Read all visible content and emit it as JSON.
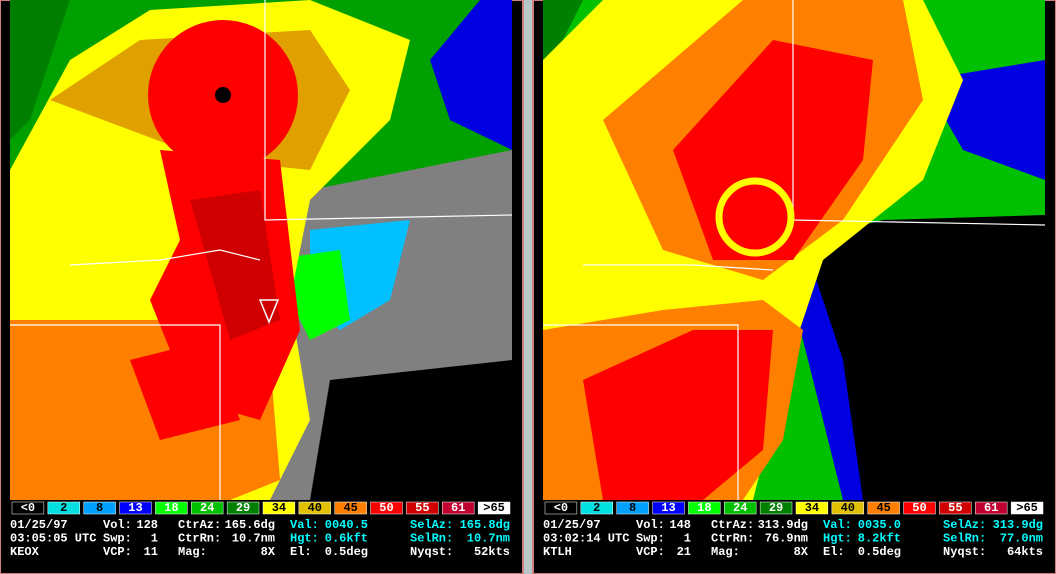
{
  "panels": [
    {
      "legend": [
        "<0",
        "2",
        "8",
        "13",
        "18",
        "24",
        "29",
        "34",
        "40",
        "45",
        "50",
        "55",
        "61",
        ">65"
      ],
      "info": [
        [
          {
            "label": "01/25/97"
          },
          {
            "label": "Vol:",
            "value": "128"
          },
          {
            "label": "CtrAz:",
            "value": "165.6dg"
          },
          {
            "label": "Val:",
            "value": "0040.5"
          },
          {
            "label": "SelAz:",
            "value": "165.8dg"
          }
        ],
        [
          {
            "label": "03:05:05 UTC"
          },
          {
            "label": "Swp:",
            "value": "1"
          },
          {
            "label": "CtrRn:",
            "value": "10.7nm"
          },
          {
            "label": "Hgt:",
            "value": "0.6kft"
          },
          {
            "label": "SelRn:",
            "value": "10.7nm"
          }
        ],
        [
          {
            "label": "KEOX"
          },
          {
            "label": "VCP:",
            "value": "11"
          },
          {
            "label": "Mag:",
            "value": "8X"
          },
          {
            "label": "El:",
            "value": "0.5deg"
          },
          {
            "label": "Nyqst:",
            "value": "52kts"
          }
        ]
      ]
    },
    {
      "legend": [
        "<0",
        "2",
        "8",
        "13",
        "18",
        "24",
        "29",
        "34",
        "40",
        "45",
        "50",
        "55",
        "61",
        ">65"
      ],
      "info": [
        [
          {
            "label": "01/25/97"
          },
          {
            "label": "Vol:",
            "value": "148"
          },
          {
            "label": "CtrAz:",
            "value": "313.9dg"
          },
          {
            "label": "Val:",
            "value": "0035.0"
          },
          {
            "label": "SelAz:",
            "value": "313.9dg"
          }
        ],
        [
          {
            "label": "03:02:14 UTC"
          },
          {
            "label": "Swp:",
            "value": "1"
          },
          {
            "label": "CtrRn:",
            "value": "76.9nm"
          },
          {
            "label": "Hgt:",
            "value": "8.2kft"
          },
          {
            "label": "SelRn:",
            "value": "77.0nm"
          }
        ],
        [
          {
            "label": "KTLH"
          },
          {
            "label": "VCP:",
            "value": "21"
          },
          {
            "label": "Mag:",
            "value": "8X"
          },
          {
            "label": "El:",
            "value": "0.5deg"
          },
          {
            "label": "Nyqst:",
            "value": "64kts"
          }
        ]
      ]
    }
  ]
}
